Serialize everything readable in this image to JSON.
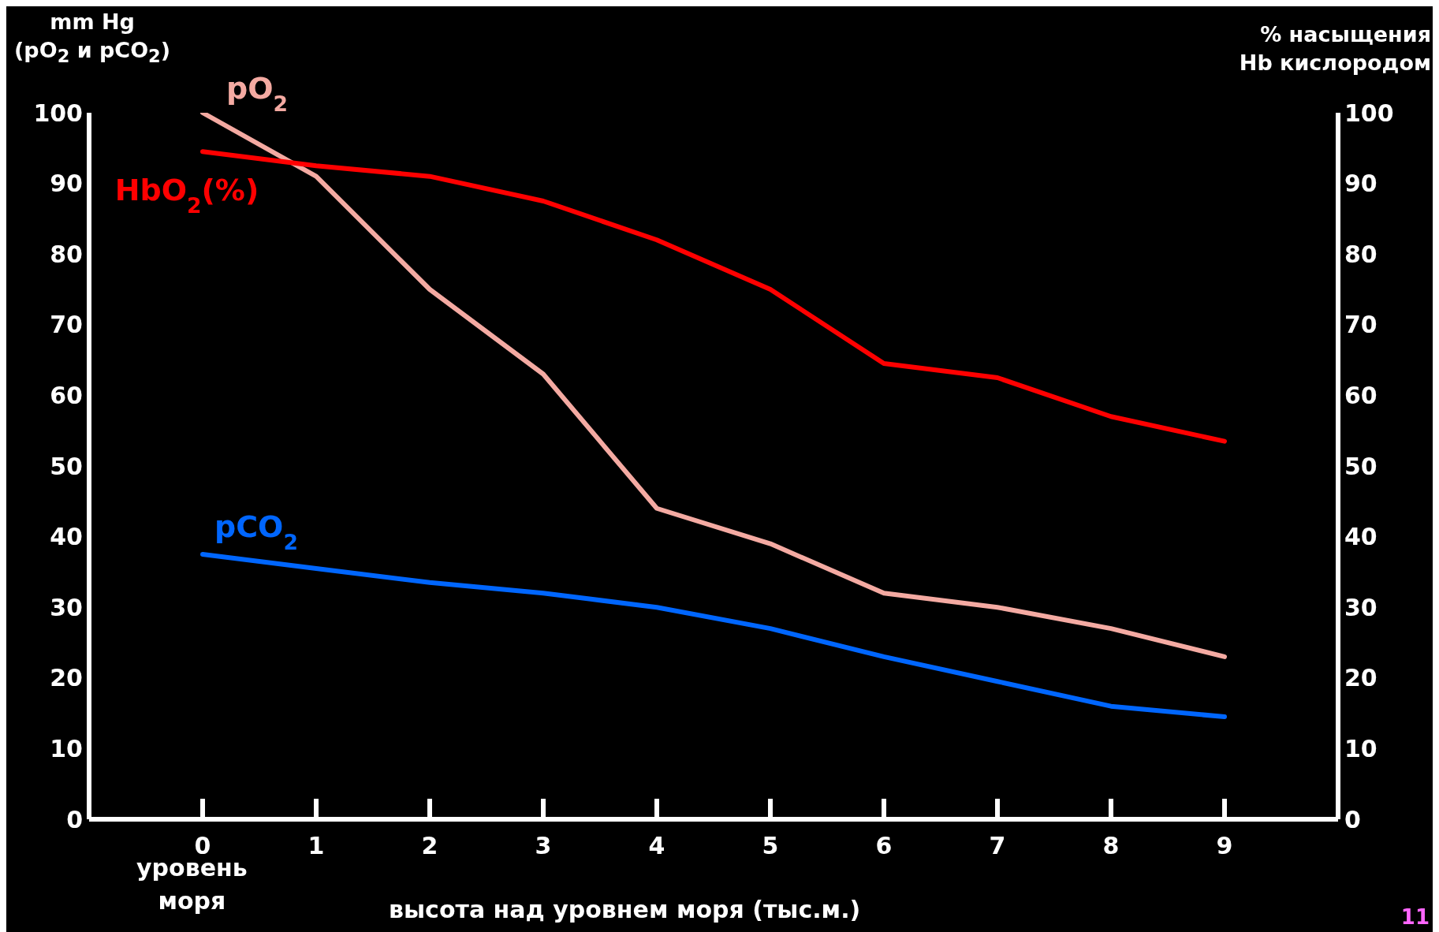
{
  "chart_data": {
    "type": "line",
    "xlabel": "высота над уровнем моря (тыс.м.)",
    "ylabel": "mm Hg\n(pO$_{2}$ и pCO$_{2}$)",
    "y2label": "% насыщения\nHb кислородом",
    "x": [
      0,
      1,
      2,
      3,
      4,
      5,
      6,
      7,
      8,
      9
    ],
    "xlim": [
      -1,
      10
    ],
    "xticks": [
      0,
      1,
      2,
      3,
      4,
      5,
      6,
      7,
      8,
      9
    ],
    "ylim": [
      0,
      100
    ],
    "yticks": [
      0,
      10,
      20,
      30,
      40,
      50,
      60,
      70,
      80,
      90,
      100
    ],
    "y2lim": [
      0,
      100
    ],
    "y2ticks": [
      0,
      10,
      20,
      30,
      40,
      50,
      60,
      70,
      80,
      90,
      100
    ],
    "grid": false,
    "legend": false,
    "marker": "none",
    "line_style": "solid",
    "series": [
      {
        "name": "pO$_{2}$",
        "color": "#f4aaa2",
        "values": [
          100,
          91,
          75,
          63,
          44,
          39,
          32,
          30,
          27,
          23
        ]
      },
      {
        "name": "HbO$_{2}$(%)",
        "color": "#ff0000",
        "axis": "y2",
        "values": [
          94.5,
          92.5,
          91,
          87.5,
          82,
          75,
          64.5,
          62.5,
          57,
          53.5
        ]
      },
      {
        "name": "pCO$_{2}$",
        "color": "#0066ff",
        "values": [
          37.5,
          35.5,
          33.5,
          32,
          30,
          27,
          23,
          19.5,
          16,
          14.5
        ]
      }
    ],
    "annotations": [
      "уровень\nморя",
      "11"
    ]
  }
}
